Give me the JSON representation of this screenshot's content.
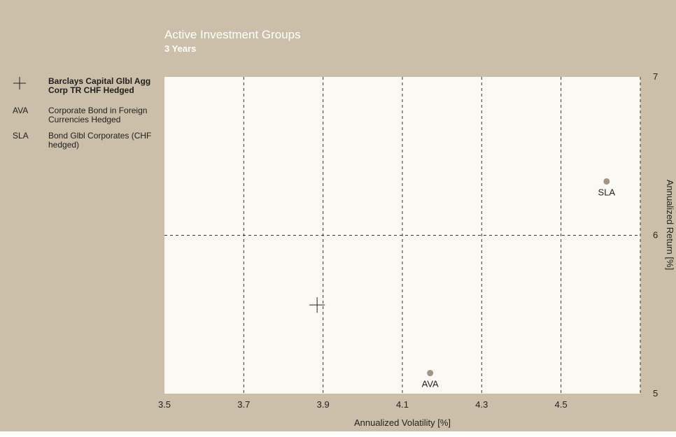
{
  "header": {
    "title": "Active Investment Groups",
    "subtitle": "3 Years"
  },
  "legend": [
    {
      "symbol": "+",
      "symbol_icon": "plus-icon",
      "label": "Barclays Capital Glbl Agg Corp TR CHF Hedged",
      "bold": true
    },
    {
      "symbol": "AVA",
      "label": "Corporate Bond in Foreign Currencies Hedged",
      "bold": false
    },
    {
      "symbol": "SLA",
      "label": "Bond Glbl Corporates (CHF hedged)",
      "bold": false
    }
  ],
  "colors": {
    "background": "#cbbfa9",
    "plot_area": "#fbf9f4",
    "point": "#a09683",
    "text": "#222222"
  },
  "chart_data": {
    "type": "scatter",
    "title": "Active Investment Groups",
    "subtitle": "3 Years",
    "xlabel": "Annualized Volatility [%]",
    "ylabel": "Annualized Return [%]",
    "xlim": [
      3.5,
      4.7
    ],
    "ylim": [
      5,
      7
    ],
    "x_ticks": [
      "3.5",
      "3.7",
      "3.9",
      "4.1",
      "4.3",
      "4.5"
    ],
    "y_ticks": [
      "5",
      "6",
      "7"
    ],
    "y_axis_side": "right",
    "grid": true,
    "series": [
      {
        "name": "Barclays Capital Glbl Agg Corp TR CHF Hedged",
        "marker": "plus",
        "points": [
          {
            "x": 3.885,
            "y": 5.56
          }
        ]
      },
      {
        "name": "Corporate Bond in Foreign Currencies Hedged",
        "marker": "circle",
        "points": [
          {
            "x": 4.17,
            "y": 5.13,
            "label": "AVA"
          }
        ]
      },
      {
        "name": "Bond Glbl Corporates (CHF hedged)",
        "marker": "circle",
        "points": [
          {
            "x": 4.615,
            "y": 6.34,
            "label": "SLA"
          }
        ]
      }
    ]
  }
}
